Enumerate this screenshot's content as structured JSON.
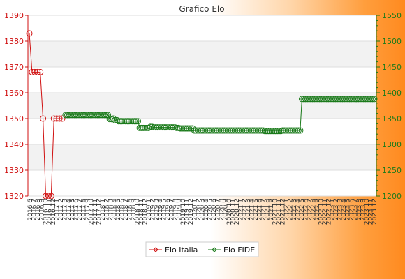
{
  "chart_data": {
    "type": "line",
    "title": "Grafico Elo",
    "legend": {
      "placement": "bottom-center"
    },
    "grid": true,
    "axes": {
      "left": {
        "ylim": [
          1320,
          1390
        ],
        "ticks": [
          1320,
          1330,
          1340,
          1350,
          1360,
          1370,
          1380,
          1390
        ],
        "color": "#d01010"
      },
      "right": {
        "ylim": [
          1200,
          1550
        ],
        "ticks": [
          1200,
          1250,
          1300,
          1350,
          1400,
          1450,
          1500,
          1550
        ],
        "color": "#1a7a1a"
      }
    },
    "series": [
      {
        "name": "Elo Italia",
        "axis": "left",
        "color": "#d01010",
        "values": [
          1383,
          1368,
          1368,
          1368,
          1368,
          1350,
          1320,
          1320,
          1320,
          1350,
          1350,
          1350,
          1350
        ]
      },
      {
        "name": "Elo FIDE",
        "axis": "right",
        "color": "#1a7a1a",
        "values": [
          1357,
          1357,
          1357,
          1357,
          1357,
          1357,
          1357,
          1357,
          1357,
          1357,
          1357,
          1357,
          1357,
          1357,
          1357,
          1357,
          1357,
          1357,
          1357,
          1357,
          1357,
          1357,
          1357,
          1357,
          1357,
          1349,
          1349,
          1350,
          1347,
          1347,
          1345,
          1345,
          1345,
          1345,
          1345,
          1345,
          1345,
          1345,
          1345,
          1345,
          1345,
          1345,
          1332,
          1332,
          1332,
          1332,
          1332,
          1332,
          1334,
          1334,
          1333,
          1333,
          1333,
          1333,
          1333,
          1333,
          1333,
          1333,
          1333,
          1333,
          1333,
          1333,
          1333,
          1332,
          1332,
          1331,
          1331,
          1331,
          1331,
          1331,
          1331,
          1331,
          1331,
          1327,
          1327,
          1327,
          1327,
          1327,
          1327,
          1327,
          1327,
          1327,
          1327,
          1327,
          1327,
          1327,
          1327,
          1327,
          1327,
          1327,
          1327,
          1327,
          1327,
          1327,
          1327,
          1327,
          1327,
          1327,
          1327,
          1327,
          1327,
          1327,
          1327,
          1327,
          1327,
          1327,
          1327,
          1327,
          1327,
          1327,
          1327,
          1327,
          1327,
          1326,
          1326,
          1326,
          1326,
          1326,
          1326,
          1326,
          1326,
          1326,
          1326,
          1327,
          1327,
          1327,
          1327,
          1327,
          1327,
          1327,
          1327,
          1327,
          1327,
          1327,
          1388,
          1388,
          1388,
          1388,
          1388,
          1388,
          1388,
          1388,
          1388,
          1388,
          1388,
          1388,
          1388,
          1388,
          1388,
          1388,
          1388,
          1388,
          1388,
          1388,
          1388,
          1388,
          1388,
          1388,
          1388,
          1388,
          1388,
          1388,
          1388,
          1388,
          1388,
          1388,
          1388,
          1388,
          1388,
          1388,
          1388,
          1388,
          1388,
          1388,
          1388,
          1388
        ]
      }
    ],
    "x_tick_labels": [
      "2016 6",
      "2016 7",
      "2016 8",
      "2016 9",
      "2016 10",
      "2016 11",
      "2016 12",
      "2017 1",
      "2017 2",
      "2017 3",
      "2017 4",
      "2017 5",
      "2017 6",
      "2017 7",
      "2017 8",
      "2017 9",
      "2017 10",
      "2017 11",
      "2017 12",
      "2018 1",
      "2018 2",
      "2018 3",
      "2018 4",
      "2018 5",
      "2018 6",
      "2018 7",
      "2018 8",
      "2018 9",
      "2018 10",
      "2018 11",
      "2018 12",
      "2019 1",
      "2019 2",
      "2019 3",
      "2019 4",
      "2019 5",
      "2019 6",
      "2019 7",
      "2019 8",
      "2019 9",
      "2019 10",
      "2019 11",
      "2019 12",
      "2020 1",
      "2020 2",
      "2020 3",
      "2020 4",
      "2020 5",
      "2020 6",
      "2020 7",
      "2020 8",
      "2020 9",
      "2020 10",
      "2020 11",
      "2020 12",
      "2021 1",
      "2021 2",
      "2021 3",
      "2021 4",
      "2021 5",
      "2021 6",
      "2021 7",
      "2021 8",
      "2021 9",
      "2021 10",
      "2021 11",
      "2021 12",
      "2022 1",
      "2022 2",
      "2022 3",
      "2022 4",
      "2022 5",
      "2022 6",
      "2022 7",
      "2022 8",
      "2022 9",
      "2022 10",
      "2022 11",
      "2022 12",
      "2023 1",
      "2023 2",
      "2023 3",
      "2023 4",
      "2023 5",
      "2023 6",
      "2023 7",
      "2023 8",
      "2023 9",
      "2023 10",
      "2023 11",
      "2023 12"
    ]
  }
}
